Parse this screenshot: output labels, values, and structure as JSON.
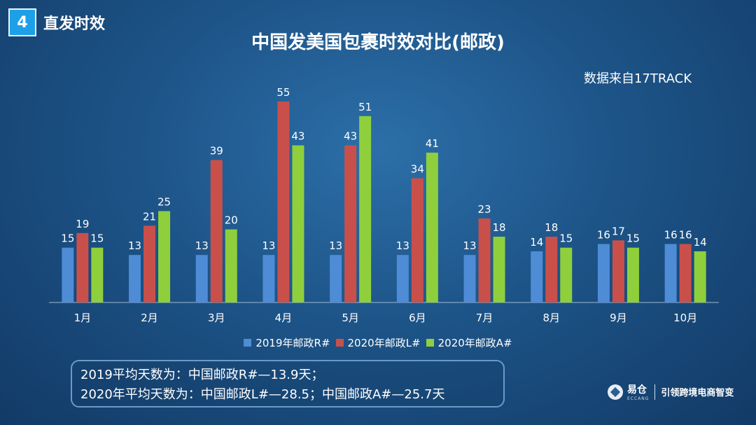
{
  "section": {
    "number": "4",
    "title": "直发时效"
  },
  "title": "中国发美国包裹时效对比(邮政)",
  "source": "数据来自17TRACK",
  "colors": {
    "series_2019": "#4f8cd6",
    "series_2020L": "#c9504a",
    "series_2020A": "#8fcf3c"
  },
  "chart_data": {
    "type": "bar",
    "categories": [
      "1月",
      "2月",
      "3月",
      "4月",
      "5月",
      "6月",
      "7月",
      "8月",
      "9月",
      "10月"
    ],
    "series": [
      {
        "name": "2019年邮政R#",
        "values": [
          15,
          13,
          13,
          13,
          13,
          13,
          13,
          14,
          16,
          16
        ]
      },
      {
        "name": "2020年邮政L#",
        "values": [
          19,
          21,
          39,
          55,
          43,
          34,
          23,
          18,
          17,
          16
        ]
      },
      {
        "name": "2020年邮政A#",
        "values": [
          15,
          25,
          20,
          43,
          51,
          41,
          18,
          15,
          15,
          14
        ]
      }
    ],
    "ylim": [
      0,
      55
    ],
    "grid": false,
    "legend": "bottom"
  },
  "summary": {
    "line1": "2019平均天数为：中国邮政R#—13.9天；",
    "line2": "2020年平均天数为：中国邮政L#—28.5；中国邮政A#—25.7天"
  },
  "brand": {
    "name": "易仓",
    "sub": "ECCANG",
    "slogan": "引领跨境电商智变"
  }
}
